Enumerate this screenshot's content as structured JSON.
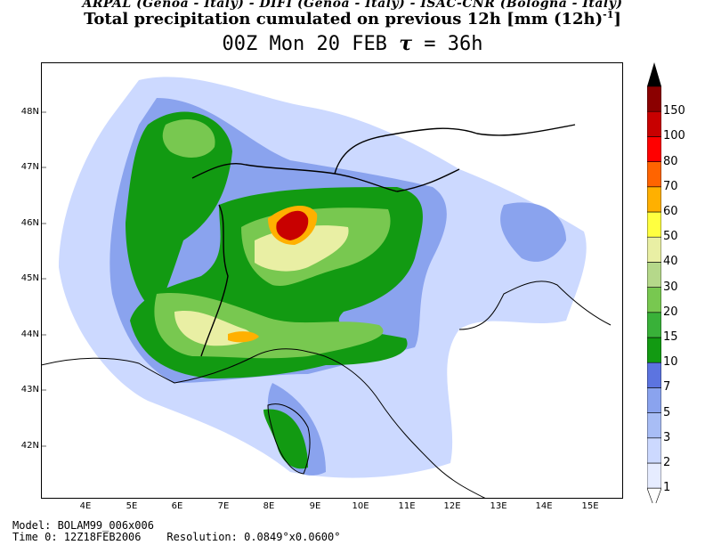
{
  "header": {
    "institutions": "ARPAL (Genoa - Italy)  -  DIFI (Genoa - Italy)  -  ISAC-CNR (Bologna - Italy)",
    "title": "Total precipitation cumulated on previous 12h [mm (12h)",
    "title_sup": "-1",
    "title_end": "]",
    "time_label": "00Z Mon 20 FEB  ",
    "tau_symbol": "τ",
    "tau_value": " = 36h"
  },
  "axes": {
    "lat_labels": [
      "48N",
      "47N",
      "46N",
      "45N",
      "44N",
      "43N",
      "42N"
    ],
    "lon_labels": [
      "4E",
      "5E",
      "6E",
      "7E",
      "8E",
      "9E",
      "10E",
      "11E",
      "12E",
      "13E",
      "14E",
      "15E"
    ]
  },
  "colorbar": {
    "labels": [
      "1",
      "2",
      "3",
      "5",
      "7",
      "10",
      "15",
      "20",
      "30",
      "40",
      "50",
      "60",
      "70",
      "80",
      "100",
      "150"
    ],
    "colors": [
      "#e6ecff",
      "#ccd9ff",
      "#a8bdf5",
      "#8aa3ee",
      "#5c74e0",
      "#129a12",
      "#39b139",
      "#78c850",
      "#b5d88a",
      "#e9efa4",
      "#ffff40",
      "#ffb000",
      "#ff6400",
      "#ff0000",
      "#c80000",
      "#8b0000"
    ]
  },
  "footer": {
    "model": "Model: BOLAM99_006x006",
    "time0": "Time 0: 12Z18FEB2006",
    "resolution": "Resolution: 0.0849°x0.0600°"
  }
}
